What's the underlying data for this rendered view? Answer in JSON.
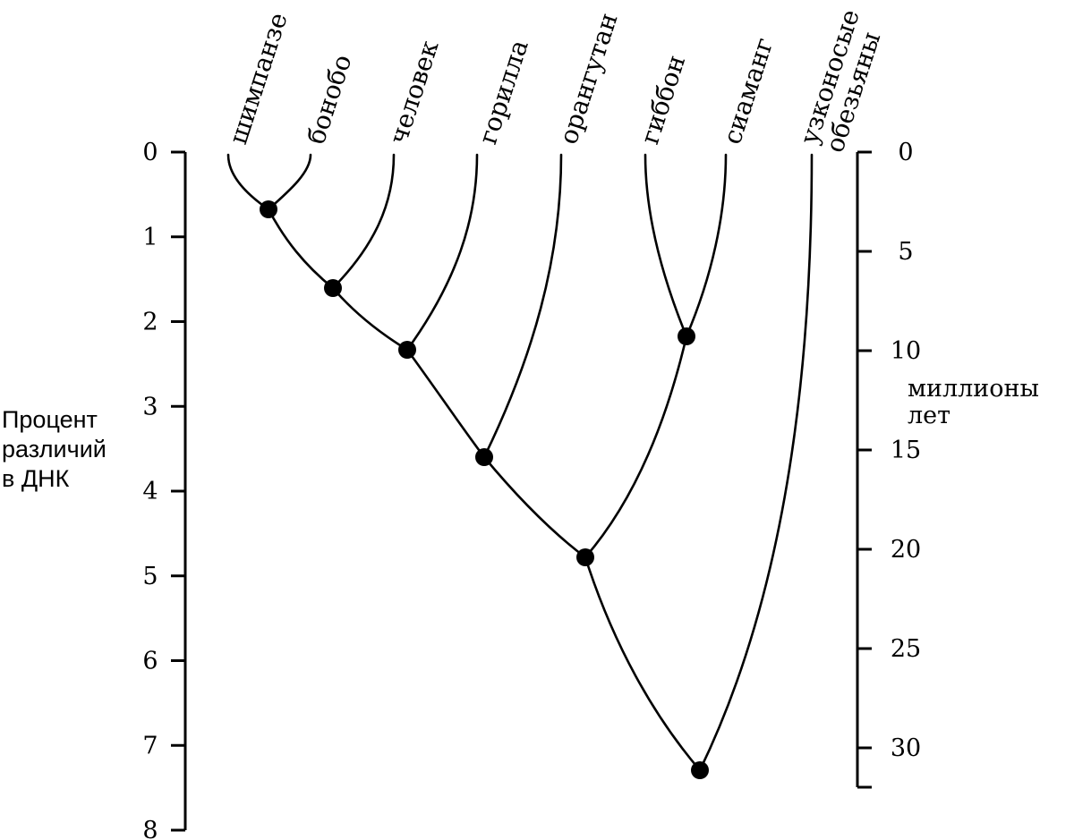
{
  "species": [
    {
      "id": "chimp",
      "label": "шимпанзе"
    },
    {
      "id": "bonobo",
      "label": "бонобо"
    },
    {
      "id": "human",
      "label": "человек"
    },
    {
      "id": "gorilla",
      "label": "горилла"
    },
    {
      "id": "orangutan",
      "label": "орангутан"
    },
    {
      "id": "gibbon",
      "label": "гиббон"
    },
    {
      "id": "siamang",
      "label": "сиаманг"
    },
    {
      "id": "catarrhines",
      "label_lines": [
        "узконосые",
        "обезьяны"
      ]
    }
  ],
  "left_axis": {
    "title_lines": [
      "Процент",
      "различий",
      "в ДНК"
    ],
    "min": 0,
    "max": 8,
    "ticks": [
      "0",
      "1",
      "2",
      "3",
      "4",
      "5",
      "6",
      "7",
      "8"
    ]
  },
  "right_axis": {
    "title_lines": [
      "миллионы",
      "лет"
    ],
    "min": 0,
    "max": 32,
    "ticks": [
      "0",
      "5",
      "10",
      "15",
      "20",
      "25",
      "30"
    ]
  },
  "nodes": [
    {
      "id": "n1",
      "dna_percent": 0.7
    },
    {
      "id": "n2",
      "dna_percent": 1.6
    },
    {
      "id": "n3",
      "dna_percent": 2.35
    },
    {
      "id": "n4",
      "dna_percent": 3.6
    },
    {
      "id": "n5",
      "dna_percent": 2.2
    },
    {
      "id": "n6",
      "dna_percent": 4.8
    },
    {
      "id": "n7",
      "dna_percent": 7.3
    }
  ]
}
